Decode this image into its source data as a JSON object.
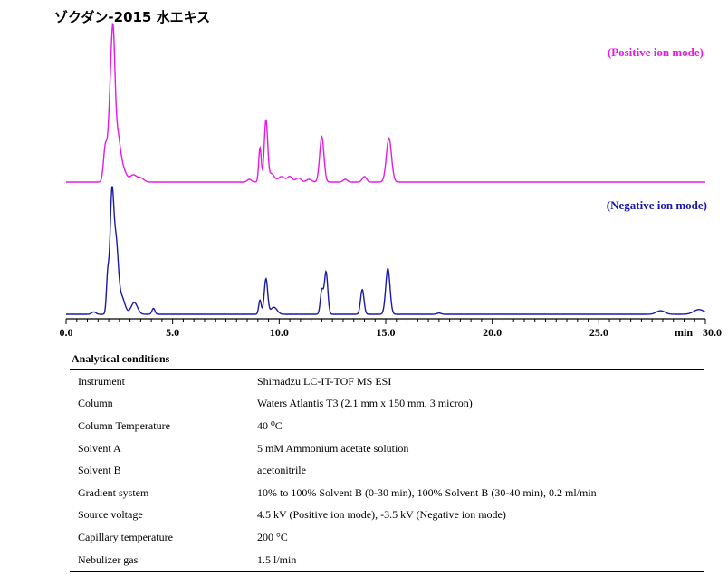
{
  "title": "ゾクダン-2015 水エキス",
  "chart_data": {
    "type": "line",
    "x_axis": {
      "range": [
        0,
        30
      ],
      "ticks": [
        "0.0",
        "5.0",
        "10.0",
        "15.0",
        "20.0",
        "25.0",
        "30.0"
      ],
      "unit_label": "min"
    },
    "series": [
      {
        "name": "(Positive ion mode)",
        "color": "#e619e6",
        "baseline": 0,
        "peaks": [
          {
            "x": 1.85,
            "y": 0.27,
            "w": 0.09
          },
          {
            "x": 2.05,
            "y": 0.4,
            "w": 0.08
          },
          {
            "x": 2.2,
            "y": 1.0,
            "w": 0.09
          },
          {
            "x": 2.4,
            "y": 0.28,
            "w": 0.12
          },
          {
            "x": 2.6,
            "y": 0.12,
            "w": 0.18
          },
          {
            "x": 3.15,
            "y": 0.05,
            "w": 0.15
          },
          {
            "x": 3.5,
            "y": 0.03,
            "w": 0.15
          },
          {
            "x": 8.6,
            "y": 0.02,
            "w": 0.1
          },
          {
            "x": 9.1,
            "y": 0.25,
            "w": 0.06
          },
          {
            "x": 9.38,
            "y": 0.45,
            "w": 0.08
          },
          {
            "x": 9.65,
            "y": 0.06,
            "w": 0.12
          },
          {
            "x": 10.1,
            "y": 0.04,
            "w": 0.15
          },
          {
            "x": 10.5,
            "y": 0.04,
            "w": 0.12
          },
          {
            "x": 10.9,
            "y": 0.03,
            "w": 0.12
          },
          {
            "x": 11.4,
            "y": 0.02,
            "w": 0.12
          },
          {
            "x": 12.0,
            "y": 0.33,
            "w": 0.1
          },
          {
            "x": 13.1,
            "y": 0.02,
            "w": 0.1
          },
          {
            "x": 14.0,
            "y": 0.04,
            "w": 0.1
          },
          {
            "x": 15.15,
            "y": 0.32,
            "w": 0.12
          }
        ]
      },
      {
        "name": "(Negative ion mode)",
        "color": "#1a1aaa",
        "baseline": 0,
        "peaks": [
          {
            "x": 1.3,
            "y": 0.02,
            "w": 0.1
          },
          {
            "x": 1.95,
            "y": 0.3,
            "w": 0.06
          },
          {
            "x": 2.15,
            "y": 1.0,
            "w": 0.09
          },
          {
            "x": 2.35,
            "y": 0.55,
            "w": 0.1
          },
          {
            "x": 2.6,
            "y": 0.15,
            "w": 0.15
          },
          {
            "x": 3.2,
            "y": 0.1,
            "w": 0.15
          },
          {
            "x": 4.1,
            "y": 0.05,
            "w": 0.07
          },
          {
            "x": 9.1,
            "y": 0.12,
            "w": 0.06
          },
          {
            "x": 9.38,
            "y": 0.3,
            "w": 0.08
          },
          {
            "x": 9.75,
            "y": 0.06,
            "w": 0.15
          },
          {
            "x": 12.0,
            "y": 0.2,
            "w": 0.07
          },
          {
            "x": 12.2,
            "y": 0.36,
            "w": 0.08
          },
          {
            "x": 13.9,
            "y": 0.21,
            "w": 0.08
          },
          {
            "x": 15.1,
            "y": 0.39,
            "w": 0.1
          },
          {
            "x": 17.5,
            "y": 0.01,
            "w": 0.1
          },
          {
            "x": 27.9,
            "y": 0.03,
            "w": 0.2
          },
          {
            "x": 29.7,
            "y": 0.04,
            "w": 0.25
          }
        ]
      }
    ]
  },
  "conditions": {
    "heading": "Analytical conditions",
    "rows": [
      {
        "label": "Instrument",
        "value": "Shimadzu LC-IT-TOF MS ESI"
      },
      {
        "label": "Column",
        "value": "Waters Atlantis T3 (2.1 mm x 150 mm, 3 micron)"
      },
      {
        "label": "Column Temperature",
        "value": "40 ⁰C"
      },
      {
        "label": "Solvent A",
        "value": "5 mM Ammonium acetate solution"
      },
      {
        "label": "Solvent B",
        "value": "acetonitrile"
      },
      {
        "label": "Gradient system",
        "value": "10% to 100% Solvent B (0-30 min), 100% Solvent B (30-40 min), 0.2 ml/min"
      },
      {
        "label": "Source voltage",
        "value": "4.5 kV (Positive ion mode), -3.5 kV (Negative ion mode)"
      },
      {
        "label": "Capillary temperature",
        "value": "200 °C"
      },
      {
        "label": "Nebulizer gas",
        "value": "1.5 l/min"
      }
    ]
  }
}
